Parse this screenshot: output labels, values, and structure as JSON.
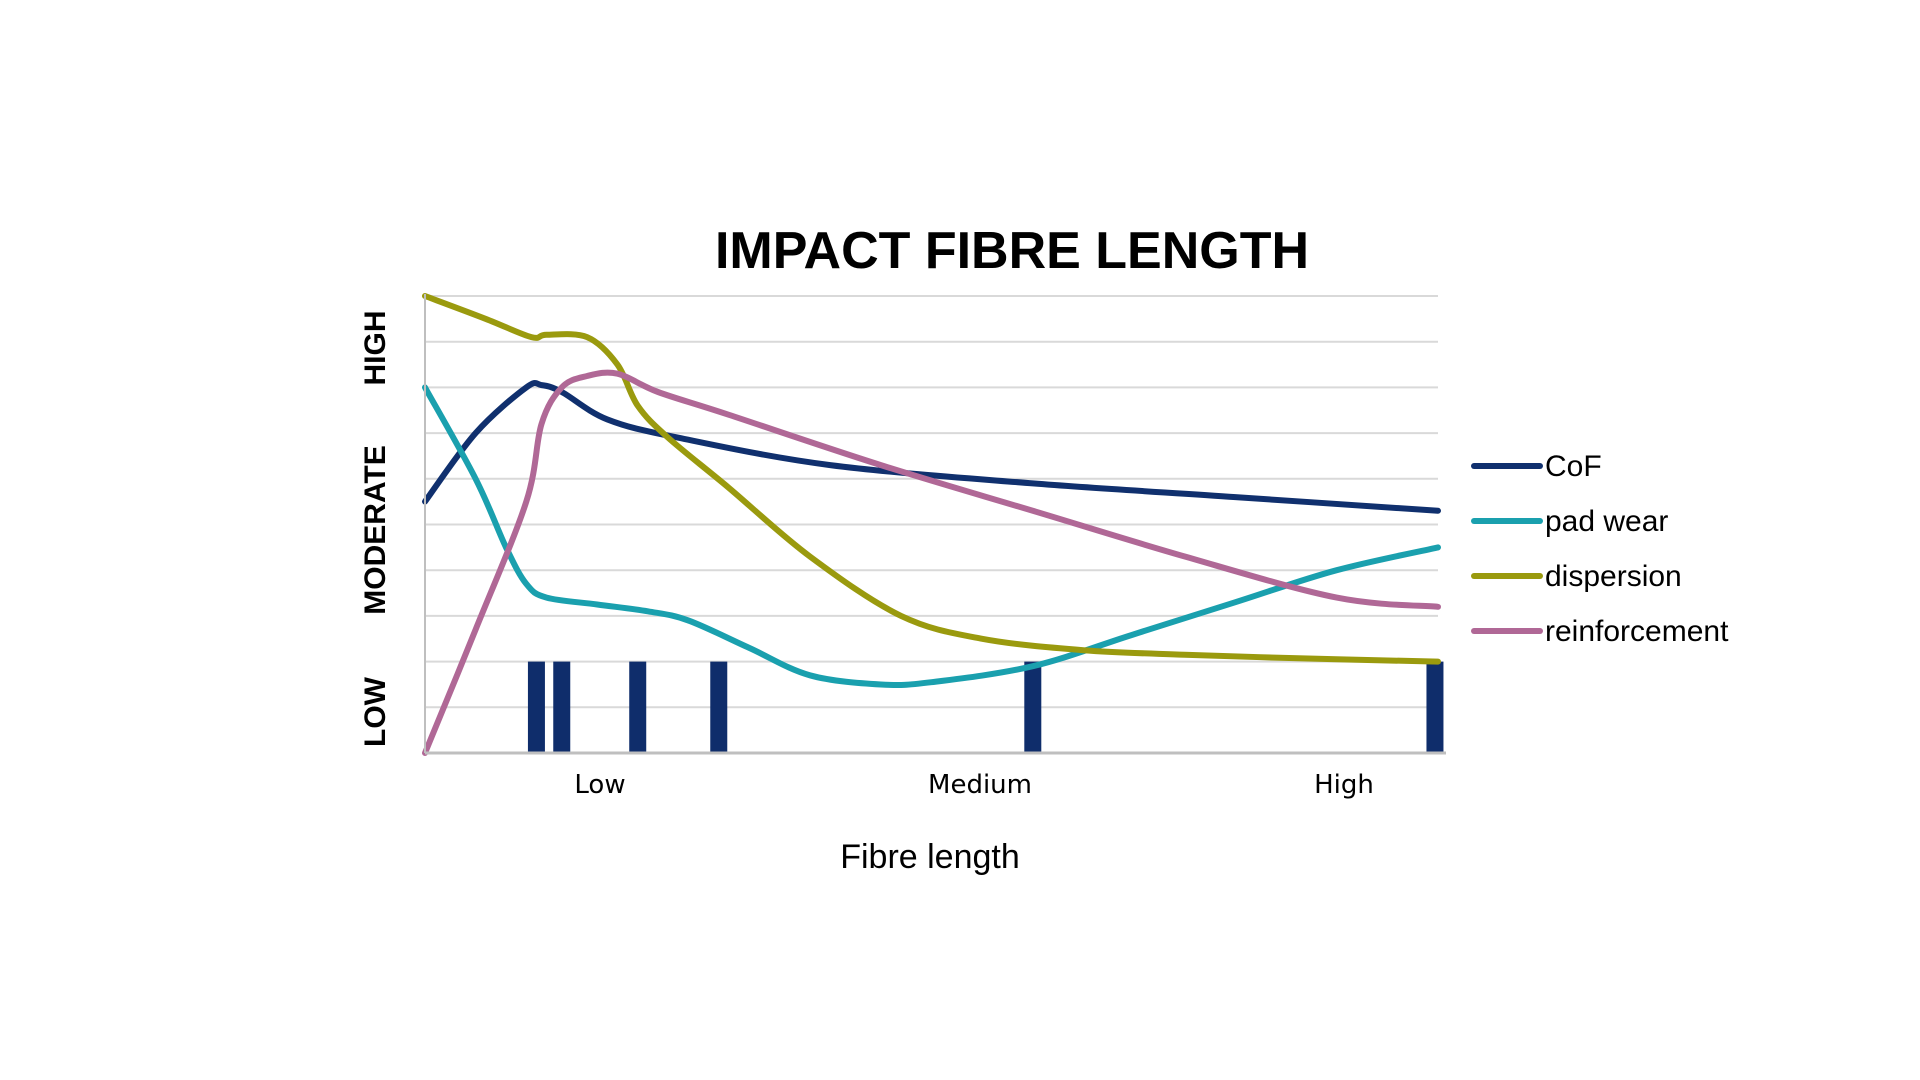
{
  "chart_data": {
    "type": "line",
    "title": "IMPACT FIBRE LENGTH",
    "xlabel": "Fibre length",
    "x_ticks": [
      "Low",
      "Medium",
      "High"
    ],
    "y_ticks": [
      "LOW",
      "MODERATE",
      "HIGH"
    ],
    "xlim": [
      0,
      100
    ],
    "ylim": [
      0,
      10
    ],
    "grid": true,
    "legend_position": "right",
    "series": [
      {
        "name": "CoF",
        "color": "#10306e",
        "points": [
          [
            0,
            5.5
          ],
          [
            5,
            7
          ],
          [
            10,
            8
          ],
          [
            11.5,
            8.05
          ],
          [
            13.5,
            7.9
          ],
          [
            18,
            7.3
          ],
          [
            25,
            6.9
          ],
          [
            40,
            6.3
          ],
          [
            60,
            5.9
          ],
          [
            80,
            5.6
          ],
          [
            100,
            5.3
          ]
        ]
      },
      {
        "name": "pad wear",
        "color": "#1aa0ae",
        "points": [
          [
            0,
            8
          ],
          [
            5,
            6
          ],
          [
            8,
            4.5
          ],
          [
            10,
            3.7
          ],
          [
            12,
            3.4
          ],
          [
            17,
            3.25
          ],
          [
            22,
            3.1
          ],
          [
            26,
            2.9
          ],
          [
            32,
            2.3
          ],
          [
            38,
            1.7
          ],
          [
            45,
            1.5
          ],
          [
            50,
            1.55
          ],
          [
            60,
            1.9
          ],
          [
            70,
            2.6
          ],
          [
            80,
            3.3
          ],
          [
            90,
            4
          ],
          [
            100,
            4.5
          ]
        ]
      },
      {
        "name": "dispersion",
        "color": "#9a9a0e",
        "points": [
          [
            0,
            10
          ],
          [
            6,
            9.5
          ],
          [
            10.5,
            9.1
          ],
          [
            12,
            9.15
          ],
          [
            16,
            9.1
          ],
          [
            19,
            8.5
          ],
          [
            21,
            7.6
          ],
          [
            24,
            6.9
          ],
          [
            30,
            5.8
          ],
          [
            38,
            4.3
          ],
          [
            47,
            3
          ],
          [
            55,
            2.5
          ],
          [
            65,
            2.25
          ],
          [
            75,
            2.15
          ],
          [
            90,
            2.05
          ],
          [
            100,
            2
          ]
        ]
      },
      {
        "name": "reinforcement",
        "color": "#b06896",
        "points": [
          [
            0,
            0
          ],
          [
            5,
            2.7
          ],
          [
            10,
            5.5
          ],
          [
            11.5,
            7.2
          ],
          [
            13.5,
            8
          ],
          [
            16,
            8.25
          ],
          [
            19,
            8.3
          ],
          [
            23,
            7.9
          ],
          [
            30,
            7.4
          ],
          [
            45,
            6.3
          ],
          [
            60,
            5.3
          ],
          [
            75,
            4.3
          ],
          [
            90,
            3.4
          ],
          [
            100,
            3.2
          ]
        ]
      }
    ],
    "markers": {
      "color": "#0f2d6b",
      "level": 2,
      "x": [
        11,
        13.5,
        21,
        29,
        60,
        99.7
      ]
    }
  }
}
